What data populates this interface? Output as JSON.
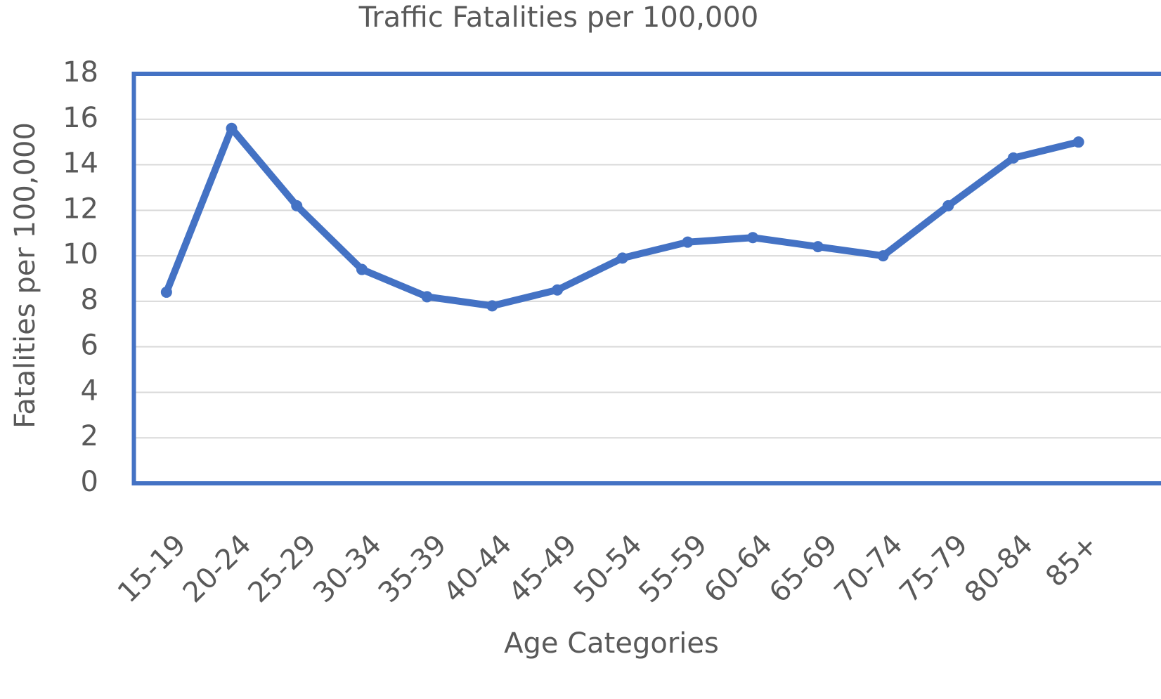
{
  "chart_data": {
    "type": "line",
    "title": "Traffic Fatalities per 100,000",
    "x_label": "Age Categories",
    "y_label": "Fatalities per 100,000",
    "categories": [
      "15-19",
      "20-24",
      "25-29",
      "30-34",
      "35-39",
      "40-44",
      "45-49",
      "50-54",
      "55-59",
      "60-64",
      "65-69",
      "70-74",
      "75-79",
      "80-84",
      "85+"
    ],
    "series": [
      {
        "name": "Fatalities per 100,000",
        "color": "#4472c4",
        "values": [
          8.4,
          15.6,
          12.2,
          9.4,
          8.2,
          7.8,
          8.5,
          9.9,
          10.6,
          10.8,
          10.4,
          10.0,
          12.2,
          14.3,
          15.0
        ]
      }
    ],
    "ylim": [
      0,
      18
    ],
    "yticks": [
      0,
      2,
      4,
      6,
      8,
      10,
      12,
      14,
      16,
      18
    ],
    "grid": true
  }
}
